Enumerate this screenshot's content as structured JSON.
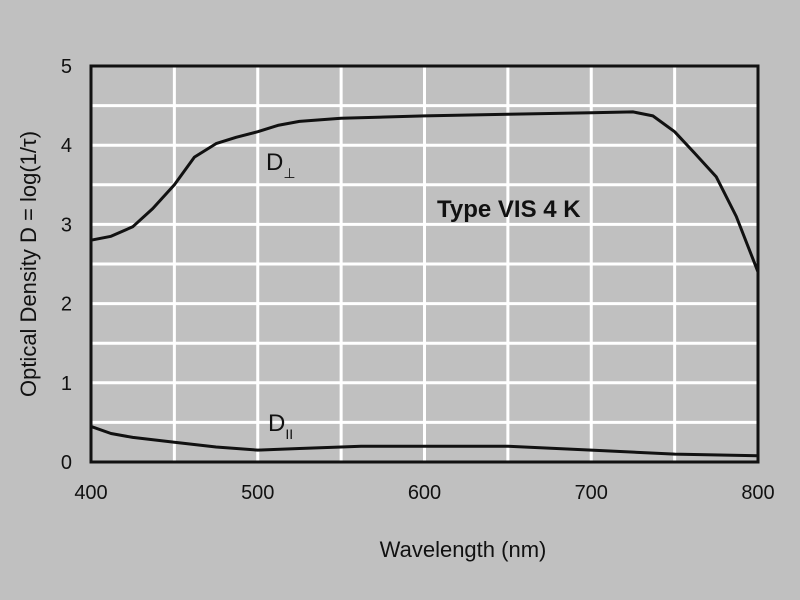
{
  "chart_data": {
    "type": "line",
    "title": "Type  VIS 4 K",
    "xlabel": "Wavelength (nm)",
    "ylabel": "Optical Density D = log(1/τ)",
    "xlim": [
      400,
      800
    ],
    "ylim": [
      0,
      5
    ],
    "xticks": [
      400,
      500,
      600,
      700,
      800
    ],
    "yticks": [
      0,
      1,
      2,
      3,
      4,
      5
    ],
    "grid": true,
    "x_grid_step": 50,
    "y_grid_step": 0.5,
    "colors": {
      "background": "#c0c0c0",
      "grid": "#ffffff",
      "line": "#111111"
    },
    "series": [
      {
        "name": "D⊥",
        "label_main": "D",
        "label_sub": "⊥",
        "x": [
          400,
          412,
          425,
          437,
          450,
          462,
          475,
          487,
          500,
          512,
          525,
          550,
          600,
          650,
          700,
          725,
          737,
          750,
          762,
          775,
          787,
          800
        ],
        "y": [
          2.8,
          2.85,
          2.97,
          3.2,
          3.5,
          3.85,
          4.02,
          4.1,
          4.17,
          4.25,
          4.3,
          4.34,
          4.37,
          4.39,
          4.41,
          4.42,
          4.37,
          4.17,
          3.9,
          3.6,
          3.1,
          2.4
        ]
      },
      {
        "name": "D∥",
        "label_main": "D",
        "label_sub": "II",
        "x": [
          400,
          412,
          425,
          450,
          475,
          500,
          525,
          550,
          562,
          650,
          700,
          750,
          800
        ],
        "y": [
          0.45,
          0.36,
          0.31,
          0.25,
          0.19,
          0.15,
          0.17,
          0.19,
          0.2,
          0.2,
          0.15,
          0.1,
          0.08
        ]
      }
    ]
  }
}
